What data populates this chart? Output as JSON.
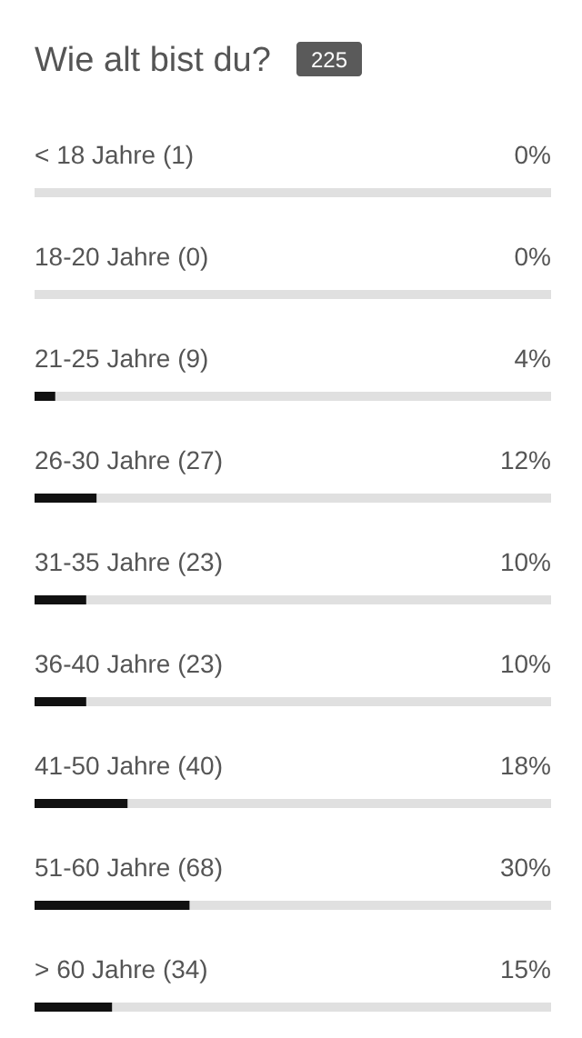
{
  "chart_data": {
    "type": "bar",
    "orientation": "horizontal",
    "title": "Wie alt bist du?",
    "annotations": [
      "225"
    ],
    "categories": [
      "< 18 Jahre (1)",
      "18-20 Jahre (0)",
      "21-25 Jahre (9)",
      "26-30 Jahre (27)",
      "31-35 Jahre (23)",
      "36-40 Jahre (23)",
      "41-50 Jahre (40)",
      "51-60 Jahre (68)",
      "> 60 Jahre (34)"
    ],
    "values": [
      0,
      0,
      4,
      12,
      10,
      10,
      18,
      30,
      15
    ],
    "value_labels": [
      "0%",
      "0%",
      "4%",
      "12%",
      "10%",
      "10%",
      "18%",
      "30%",
      "15%"
    ],
    "color": "#111111",
    "xlim": [
      0,
      100
    ]
  }
}
